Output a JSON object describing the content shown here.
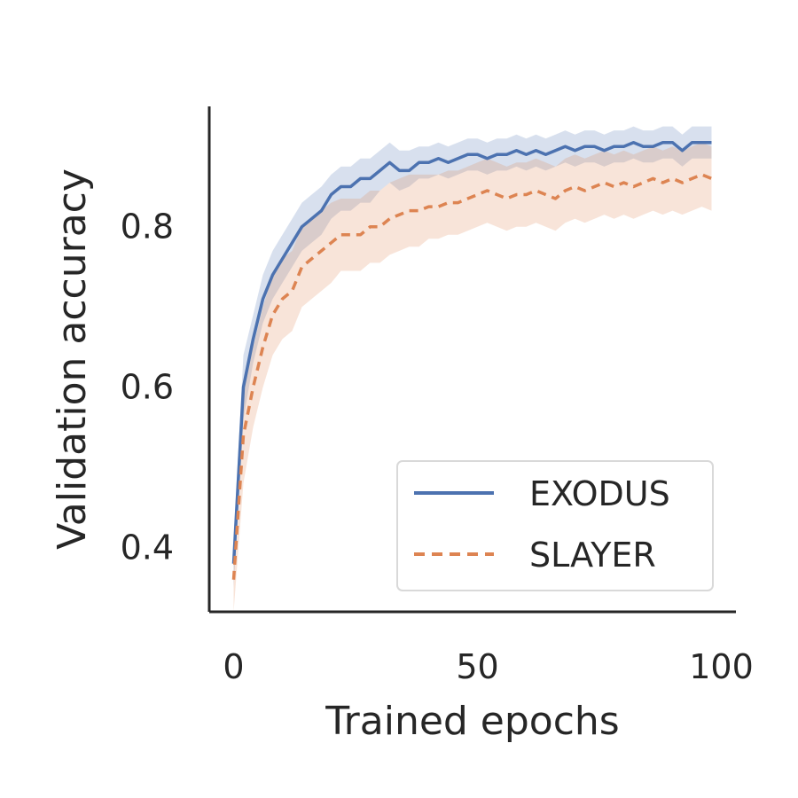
{
  "chart_data": {
    "type": "line",
    "title": "",
    "xlabel": "Trained epochs",
    "ylabel": "Validation accuracy",
    "xlim": [
      -5,
      103
    ],
    "ylim": [
      0.32,
      0.95
    ],
    "xticks": [
      0,
      50,
      100
    ],
    "xtick_labels": [
      "0",
      "50",
      "100"
    ],
    "yticks": [
      0.4,
      0.6,
      0.8
    ],
    "ytick_labels": [
      "0.4",
      "0.6",
      "0.8"
    ],
    "grid": false,
    "legend_position": "lower-right",
    "x": [
      0,
      2,
      4,
      6,
      8,
      10,
      12,
      14,
      16,
      18,
      20,
      22,
      24,
      26,
      28,
      30,
      32,
      34,
      36,
      38,
      40,
      42,
      44,
      46,
      48,
      50,
      52,
      54,
      56,
      58,
      60,
      62,
      64,
      66,
      68,
      70,
      72,
      74,
      76,
      78,
      80,
      82,
      84,
      86,
      88,
      90,
      92,
      94,
      96,
      98
    ],
    "series": [
      {
        "name": "EXODUS",
        "color": "#4c72b0",
        "line_style": "solid",
        "values": [
          0.38,
          0.6,
          0.66,
          0.71,
          0.74,
          0.76,
          0.78,
          0.8,
          0.81,
          0.82,
          0.84,
          0.85,
          0.85,
          0.86,
          0.86,
          0.87,
          0.88,
          0.87,
          0.87,
          0.88,
          0.88,
          0.885,
          0.88,
          0.885,
          0.89,
          0.89,
          0.885,
          0.89,
          0.89,
          0.895,
          0.89,
          0.895,
          0.89,
          0.895,
          0.9,
          0.895,
          0.9,
          0.9,
          0.895,
          0.9,
          0.9,
          0.905,
          0.9,
          0.9,
          0.905,
          0.905,
          0.895,
          0.905,
          0.905,
          0.905
        ],
        "band_lower": [
          0.35,
          0.56,
          0.63,
          0.68,
          0.71,
          0.73,
          0.75,
          0.77,
          0.78,
          0.79,
          0.81,
          0.82,
          0.82,
          0.83,
          0.83,
          0.845,
          0.855,
          0.845,
          0.85,
          0.86,
          0.86,
          0.865,
          0.86,
          0.865,
          0.87,
          0.87,
          0.865,
          0.87,
          0.87,
          0.875,
          0.87,
          0.875,
          0.87,
          0.875,
          0.88,
          0.875,
          0.88,
          0.88,
          0.875,
          0.88,
          0.88,
          0.885,
          0.88,
          0.88,
          0.885,
          0.885,
          0.875,
          0.885,
          0.885,
          0.885
        ],
        "band_upper": [
          0.41,
          0.64,
          0.69,
          0.74,
          0.77,
          0.79,
          0.81,
          0.83,
          0.84,
          0.85,
          0.865,
          0.875,
          0.875,
          0.885,
          0.885,
          0.895,
          0.905,
          0.895,
          0.895,
          0.9,
          0.9,
          0.905,
          0.9,
          0.905,
          0.91,
          0.91,
          0.905,
          0.91,
          0.91,
          0.915,
          0.91,
          0.915,
          0.91,
          0.915,
          0.92,
          0.915,
          0.92,
          0.92,
          0.915,
          0.92,
          0.92,
          0.925,
          0.92,
          0.92,
          0.925,
          0.925,
          0.915,
          0.925,
          0.925,
          0.925
        ]
      },
      {
        "name": "SLAYER",
        "color": "#dd8452",
        "line_style": "dashed",
        "values": [
          0.36,
          0.54,
          0.6,
          0.65,
          0.69,
          0.71,
          0.72,
          0.75,
          0.76,
          0.77,
          0.78,
          0.79,
          0.79,
          0.79,
          0.8,
          0.8,
          0.81,
          0.815,
          0.82,
          0.82,
          0.825,
          0.825,
          0.83,
          0.83,
          0.835,
          0.84,
          0.845,
          0.84,
          0.835,
          0.84,
          0.84,
          0.845,
          0.84,
          0.835,
          0.845,
          0.85,
          0.845,
          0.85,
          0.855,
          0.85,
          0.855,
          0.85,
          0.855,
          0.86,
          0.855,
          0.86,
          0.855,
          0.86,
          0.865,
          0.86
        ],
        "band_lower": [
          0.32,
          0.48,
          0.55,
          0.6,
          0.64,
          0.66,
          0.67,
          0.7,
          0.71,
          0.72,
          0.73,
          0.745,
          0.745,
          0.745,
          0.755,
          0.755,
          0.765,
          0.77,
          0.775,
          0.775,
          0.785,
          0.785,
          0.79,
          0.79,
          0.795,
          0.8,
          0.805,
          0.8,
          0.795,
          0.8,
          0.8,
          0.805,
          0.8,
          0.795,
          0.805,
          0.81,
          0.805,
          0.81,
          0.815,
          0.81,
          0.815,
          0.81,
          0.815,
          0.82,
          0.815,
          0.82,
          0.815,
          0.82,
          0.825,
          0.82
        ],
        "band_upper": [
          0.4,
          0.6,
          0.65,
          0.7,
          0.74,
          0.76,
          0.77,
          0.8,
          0.81,
          0.82,
          0.83,
          0.835,
          0.835,
          0.835,
          0.845,
          0.845,
          0.855,
          0.86,
          0.865,
          0.865,
          0.865,
          0.865,
          0.87,
          0.87,
          0.875,
          0.88,
          0.885,
          0.88,
          0.875,
          0.88,
          0.88,
          0.885,
          0.88,
          0.875,
          0.885,
          0.89,
          0.885,
          0.89,
          0.895,
          0.89,
          0.895,
          0.89,
          0.895,
          0.9,
          0.895,
          0.9,
          0.895,
          0.9,
          0.905,
          0.9
        ]
      }
    ]
  }
}
